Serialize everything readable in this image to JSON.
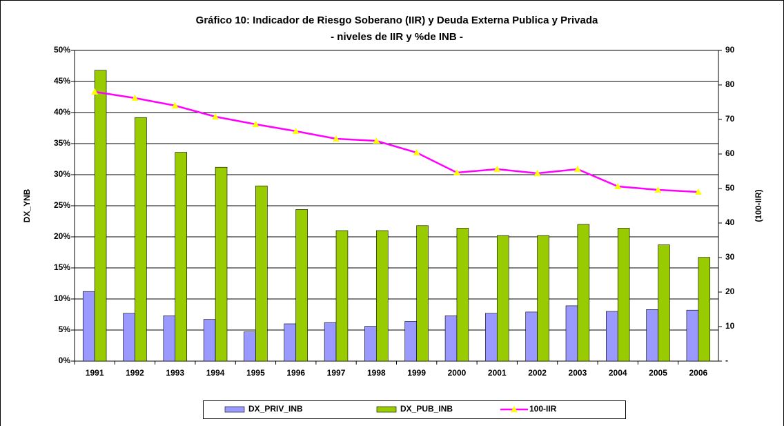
{
  "chart_data": {
    "type": "bar",
    "title": "Gráfico 10: Indicador de Riesgo Soberano (IIR)  y Deuda  Externa Publica y Privada",
    "subtitle": "- niveles de IIR y %de INB -",
    "y_label": "DX_YNB",
    "y2_label": "(100-IIR)",
    "categories": [
      "1991",
      "1992",
      "1993",
      "1994",
      "1995",
      "1996",
      "1997",
      "1998",
      "1999",
      "2000",
      "2001",
      "2002",
      "2003",
      "2004",
      "2005",
      "2006"
    ],
    "series": [
      {
        "name": "DX_PRIV_INB",
        "color": "#9999ff",
        "values": [
          11.2,
          7.7,
          7.3,
          6.7,
          4.7,
          6.0,
          6.2,
          5.6,
          6.4,
          7.3,
          7.7,
          7.9,
          8.9,
          8.0,
          8.3,
          8.2
        ]
      },
      {
        "name": "DX_PUB_INB",
        "color": "#99cc00",
        "values": [
          46.8,
          39.2,
          33.6,
          31.2,
          28.2,
          24.4,
          21.0,
          21.0,
          21.8,
          21.4,
          20.2,
          20.2,
          22.0,
          21.4,
          18.7,
          16.7
        ]
      },
      {
        "name": "100-IIR",
        "color": "#ff00ff",
        "type": "line",
        "marker_color": "#ffff00",
        "axis": "y2",
        "values": [
          78,
          76.2,
          74,
          70.8,
          68.6,
          66.6,
          64.4,
          63.8,
          60.4,
          54.6,
          55.6,
          54.4,
          55.6,
          50.6,
          49.6,
          49
        ]
      }
    ],
    "ylim": [
      0,
      50
    ],
    "yticks": [
      {
        "value": 0,
        "label": "0%"
      },
      {
        "value": 5,
        "label": "5%"
      },
      {
        "value": 10,
        "label": "10%"
      },
      {
        "value": 15,
        "label": "15%"
      },
      {
        "value": 20,
        "label": "20%"
      },
      {
        "value": 25,
        "label": "25%"
      },
      {
        "value": 30,
        "label": "30%"
      },
      {
        "value": 35,
        "label": "35%"
      },
      {
        "value": 40,
        "label": "40%"
      },
      {
        "value": 45,
        "label": "45%"
      },
      {
        "value": 50,
        "label": "50%"
      }
    ],
    "y2lim": [
      0,
      90
    ],
    "y2ticks": [
      {
        "value": 0,
        "label": "-"
      },
      10,
      20,
      30,
      40,
      50,
      60,
      70,
      80,
      90
    ],
    "grid": true
  }
}
